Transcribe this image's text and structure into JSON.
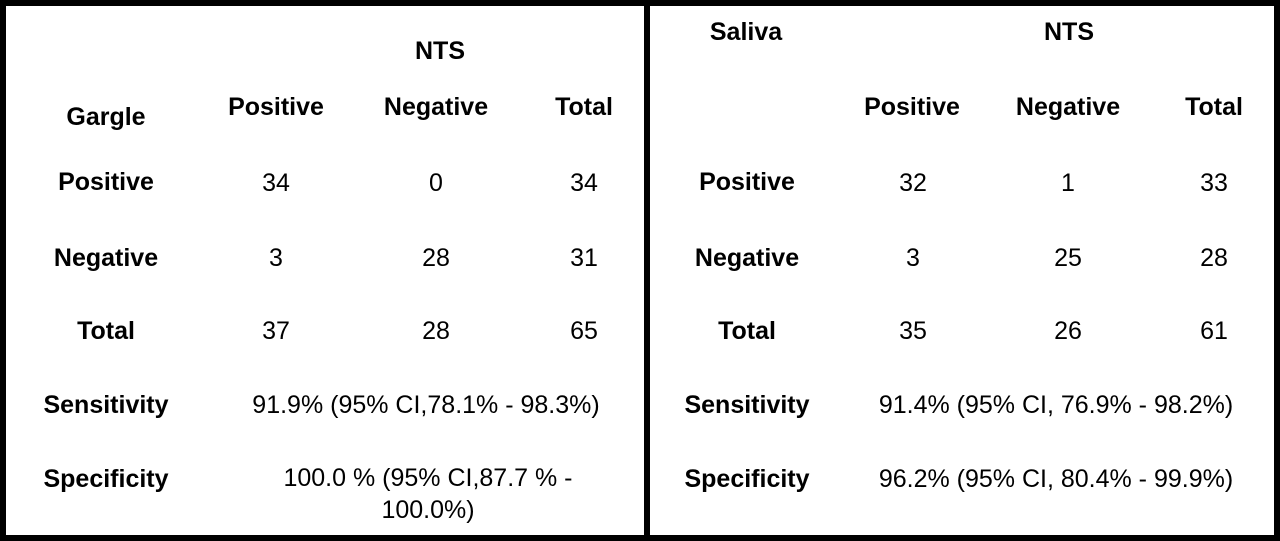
{
  "left": {
    "row_title": "Gargle",
    "col_title": "NTS",
    "col_headers": [
      "Positive",
      "Negative",
      "Total"
    ],
    "rows": [
      {
        "label": "Positive",
        "values": [
          "34",
          "0",
          "34"
        ]
      },
      {
        "label": "Negative",
        "values": [
          "3",
          "28",
          "31"
        ]
      },
      {
        "label": "Total",
        "values": [
          "37",
          "28",
          "65"
        ]
      }
    ],
    "sensitivity_label": "Sensitivity",
    "sensitivity_value": "91.9% (95% CI,78.1% - 98.3%)",
    "specificity_label": "Specificity",
    "specificity_value": "100.0 % (95% CI,87.7 % - 100.0%)"
  },
  "right": {
    "row_title": "Saliva",
    "col_title": "NTS",
    "col_headers": [
      "Positive",
      "Negative",
      "Total"
    ],
    "rows": [
      {
        "label": "Positive",
        "values": [
          "32",
          "1",
          "33"
        ]
      },
      {
        "label": "Negative",
        "values": [
          "3",
          "25",
          "28"
        ]
      },
      {
        "label": "Total",
        "values": [
          "35",
          "26",
          "61"
        ]
      }
    ],
    "sensitivity_label": "Sensitivity",
    "sensitivity_value": "91.4% (95% CI, 76.9% - 98.2%)",
    "specificity_label": "Specificity",
    "specificity_value": "96.2% (95% CI, 80.4% - 99.9%)"
  }
}
